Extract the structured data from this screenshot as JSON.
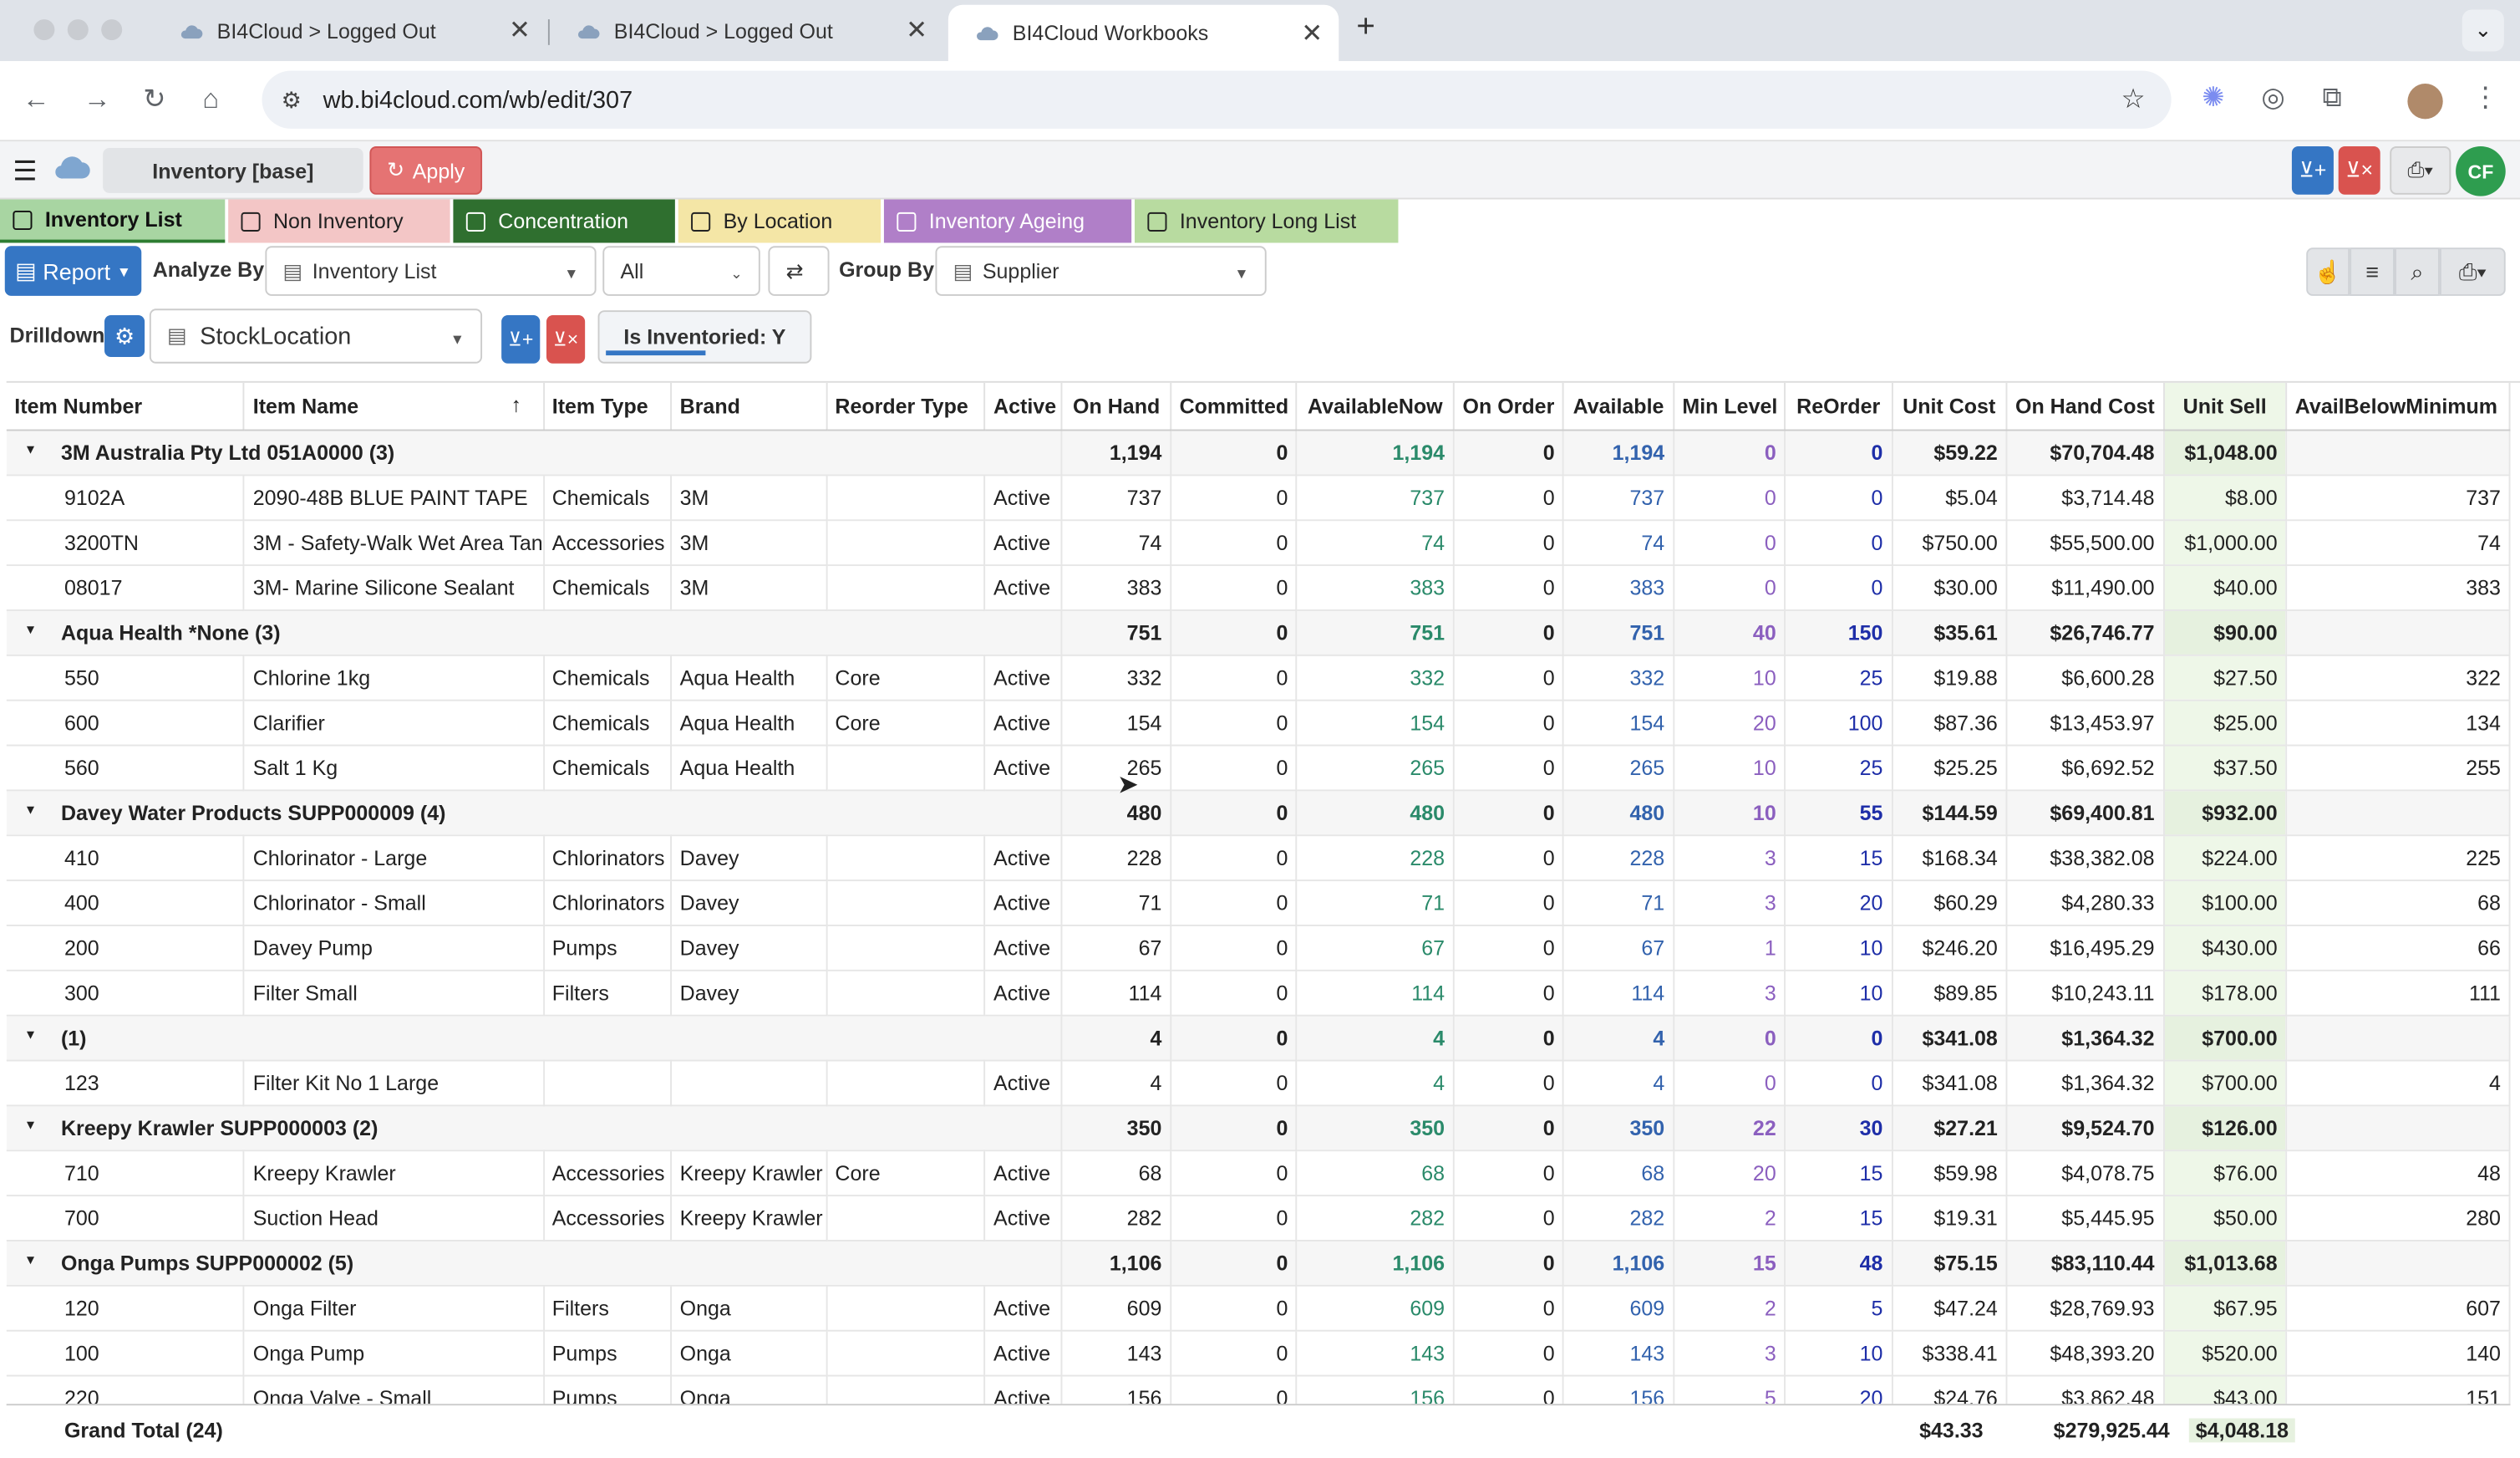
{
  "browser": {
    "tabs": [
      {
        "title": "BI4Cloud > Logged Out"
      },
      {
        "title": "BI4Cloud > Logged Out"
      },
      {
        "title": "BI4Cloud Workbooks"
      }
    ],
    "url": "wb.bi4cloud.com/wb/edit/307"
  },
  "app": {
    "workbook_name": "Inventory [base]",
    "apply_label": "Apply",
    "avatar_initials": "CF"
  },
  "sheet_tabs": [
    {
      "label": "Inventory List",
      "color": "#a8d5a2"
    },
    {
      "label": "Non Inventory",
      "color": "#f3c6c6"
    },
    {
      "label": "Concentration",
      "color": "#2f6f2f"
    },
    {
      "label": "By Location",
      "color": "#f4e6a6"
    },
    {
      "label": "Inventory Ageing",
      "color": "#b07fc8"
    },
    {
      "label": "Inventory Long List",
      "color": "#b8dba0"
    }
  ],
  "toolbar": {
    "report_label": "Report",
    "analyze_by_label": "Analyze By",
    "analyze_by_value": "Inventory List",
    "all_value": "All",
    "group_by_label": "Group By",
    "group_by_value": "Supplier",
    "drilldown_label": "Drilldown",
    "drilldown_value": "StockLocation",
    "filter_chip": "Is Inventoried: Y"
  },
  "table": {
    "columns": [
      "Item Number",
      "Item Name",
      "Item Type",
      "Brand",
      "Reorder Type",
      "Active",
      "On Hand",
      "Committed",
      "AvailableNow",
      "On Order",
      "Available",
      "Min Level",
      "ReOrder",
      "Unit Cost",
      "On Hand Cost",
      "Unit Sell",
      "AvailBelowMinimum"
    ],
    "rows": [
      {
        "group": true,
        "label": "3M Australia Pty Ltd 051A0000 (3)",
        "v": [
          "1,194",
          "0",
          "1,194",
          "0",
          "1,194",
          "0",
          "0",
          "$59.22",
          "$70,704.48",
          "$1,048.00",
          ""
        ]
      },
      {
        "c": [
          "9102A",
          "2090-48B BLUE PAINT TAPE",
          "Chemicals",
          "3M",
          "",
          "Active"
        ],
        "v": [
          "737",
          "0",
          "737",
          "0",
          "737",
          "0",
          "0",
          "$5.04",
          "$3,714.48",
          "$8.00",
          "737"
        ]
      },
      {
        "c": [
          "3200TN",
          "3M - Safety-Walk Wet Area Tan",
          "Accessories",
          "3M",
          "",
          "Active"
        ],
        "v": [
          "74",
          "0",
          "74",
          "0",
          "74",
          "0",
          "0",
          "$750.00",
          "$55,500.00",
          "$1,000.00",
          "74"
        ]
      },
      {
        "c": [
          "08017",
          "3M- Marine Silicone Sealant",
          "Chemicals",
          "3M",
          "",
          "Active"
        ],
        "v": [
          "383",
          "0",
          "383",
          "0",
          "383",
          "0",
          "0",
          "$30.00",
          "$11,490.00",
          "$40.00",
          "383"
        ]
      },
      {
        "group": true,
        "label": "Aqua Health *None (3)",
        "v": [
          "751",
          "0",
          "751",
          "0",
          "751",
          "40",
          "150",
          "$35.61",
          "$26,746.77",
          "$90.00",
          ""
        ]
      },
      {
        "c": [
          "550",
          "Chlorine 1kg",
          "Chemicals",
          "Aqua Health",
          "Core",
          "Active"
        ],
        "v": [
          "332",
          "0",
          "332",
          "0",
          "332",
          "10",
          "25",
          "$19.88",
          "$6,600.28",
          "$27.50",
          "322"
        ]
      },
      {
        "c": [
          "600",
          "Clarifier",
          "Chemicals",
          "Aqua Health",
          "Core",
          "Active"
        ],
        "v": [
          "154",
          "0",
          "154",
          "0",
          "154",
          "20",
          "100",
          "$87.36",
          "$13,453.97",
          "$25.00",
          "134"
        ]
      },
      {
        "c": [
          "560",
          "Salt 1 Kg",
          "Chemicals",
          "Aqua Health",
          "",
          "Active"
        ],
        "v": [
          "265",
          "0",
          "265",
          "0",
          "265",
          "10",
          "25",
          "$25.25",
          "$6,692.52",
          "$37.50",
          "255"
        ]
      },
      {
        "group": true,
        "label": "Davey Water Products SUPP000009 (4)",
        "v": [
          "480",
          "0",
          "480",
          "0",
          "480",
          "10",
          "55",
          "$144.59",
          "$69,400.81",
          "$932.00",
          ""
        ]
      },
      {
        "c": [
          "410",
          "Chlorinator - Large",
          "Chlorinators",
          "Davey",
          "",
          "Active"
        ],
        "v": [
          "228",
          "0",
          "228",
          "0",
          "228",
          "3",
          "15",
          "$168.34",
          "$38,382.08",
          "$224.00",
          "225"
        ]
      },
      {
        "c": [
          "400",
          "Chlorinator - Small",
          "Chlorinators",
          "Davey",
          "",
          "Active"
        ],
        "v": [
          "71",
          "0",
          "71",
          "0",
          "71",
          "3",
          "20",
          "$60.29",
          "$4,280.33",
          "$100.00",
          "68"
        ]
      },
      {
        "c": [
          "200",
          "Davey Pump",
          "Pumps",
          "Davey",
          "",
          "Active"
        ],
        "v": [
          "67",
          "0",
          "67",
          "0",
          "67",
          "1",
          "10",
          "$246.20",
          "$16,495.29",
          "$430.00",
          "66"
        ]
      },
      {
        "c": [
          "300",
          "Filter Small",
          "Filters",
          "Davey",
          "",
          "Active"
        ],
        "v": [
          "114",
          "0",
          "114",
          "0",
          "114",
          "3",
          "10",
          "$89.85",
          "$10,243.11",
          "$178.00",
          "111"
        ]
      },
      {
        "group": true,
        "label": "(1)",
        "v": [
          "4",
          "0",
          "4",
          "0",
          "4",
          "0",
          "0",
          "$341.08",
          "$1,364.32",
          "$700.00",
          ""
        ]
      },
      {
        "c": [
          "123",
          "Filter Kit No 1 Large",
          "",
          "",
          "",
          "Active"
        ],
        "v": [
          "4",
          "0",
          "4",
          "0",
          "4",
          "0",
          "0",
          "$341.08",
          "$1,364.32",
          "$700.00",
          "4"
        ]
      },
      {
        "group": true,
        "label": "Kreepy Krawler SUPP000003 (2)",
        "v": [
          "350",
          "0",
          "350",
          "0",
          "350",
          "22",
          "30",
          "$27.21",
          "$9,524.70",
          "$126.00",
          ""
        ]
      },
      {
        "c": [
          "710",
          "Kreepy Krawler",
          "Accessories",
          "Kreepy Krawler",
          "Core",
          "Active"
        ],
        "v": [
          "68",
          "0",
          "68",
          "0",
          "68",
          "20",
          "15",
          "$59.98",
          "$4,078.75",
          "$76.00",
          "48"
        ]
      },
      {
        "c": [
          "700",
          "Suction Head",
          "Accessories",
          "Kreepy Krawler",
          "",
          "Active"
        ],
        "v": [
          "282",
          "0",
          "282",
          "0",
          "282",
          "2",
          "15",
          "$19.31",
          "$5,445.95",
          "$50.00",
          "280"
        ]
      },
      {
        "group": true,
        "label": "Onga Pumps SUPP000002 (5)",
        "v": [
          "1,106",
          "0",
          "1,106",
          "0",
          "1,106",
          "15",
          "48",
          "$75.15",
          "$83,110.44",
          "$1,013.68",
          ""
        ]
      },
      {
        "c": [
          "120",
          "Onga Filter",
          "Filters",
          "Onga",
          "",
          "Active"
        ],
        "v": [
          "609",
          "0",
          "609",
          "0",
          "609",
          "2",
          "5",
          "$47.24",
          "$28,769.93",
          "$67.95",
          "607"
        ]
      },
      {
        "c": [
          "100",
          "Onga Pump",
          "Pumps",
          "Onga",
          "",
          "Active"
        ],
        "v": [
          "143",
          "0",
          "143",
          "0",
          "143",
          "3",
          "10",
          "$338.41",
          "$48,393.20",
          "$520.00",
          "140"
        ]
      },
      {
        "c": [
          "220",
          "Onga Valve - Small",
          "Pumps",
          "Onga",
          "",
          "Active"
        ],
        "v": [
          "156",
          "0",
          "156",
          "0",
          "156",
          "5",
          "20",
          "$24.76",
          "$3,862.48",
          "$43.00",
          "151"
        ]
      }
    ],
    "grand_total": {
      "label": "Grand Total (24)",
      "unit_cost": "$43.33",
      "on_hand_cost": "$279,925.44",
      "unit_sell": "$4,048.18"
    }
  }
}
